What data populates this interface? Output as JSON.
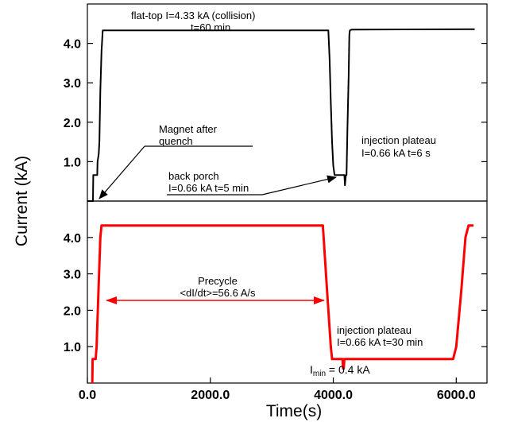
{
  "chart_data": [
    {
      "type": "line",
      "panel": "top",
      "xlim": [
        0,
        6500
      ],
      "ylim": [
        0,
        5.0
      ],
      "yticks": [
        "4.0",
        "3.0",
        "2.0",
        "1.0"
      ],
      "yticks_values": [
        4.0,
        3.0,
        2.0,
        1.0
      ],
      "series": [
        {
          "color": "#000000",
          "x": [
            0,
            90,
            95,
            100,
            160,
            165,
            185,
            195,
            210,
            230,
            250,
            270,
            3920,
            3940,
            3960,
            3980,
            4000,
            4020,
            4180,
            4190,
            4205,
            4215,
            4230,
            4250,
            4260,
            4270,
            4300,
            6300
          ],
          "y": [
            0,
            0,
            0.66,
            0.66,
            0.66,
            1.0,
            1.2,
            1.5,
            2.8,
            3.8,
            4.33,
            4.33,
            4.33,
            3.6,
            2.5,
            1.5,
            0.9,
            0.66,
            0.66,
            0.4,
            0.66,
            0.66,
            1.8,
            3.2,
            4.2,
            4.33,
            4.35,
            4.36
          ]
        }
      ],
      "annotations": {
        "flat_top_1": "flat-top I=4.33 kA (collision)",
        "flat_top_2": "t=60  min",
        "quench_1": "Magnet after",
        "quench_2": "quench",
        "porch_1": "back porch",
        "porch_2": "I=0.66 kA t=5 min",
        "plateau_1": "injection plateau",
        "plateau_2": "I=0.66 kA t=6 s"
      }
    },
    {
      "type": "line",
      "panel": "bottom",
      "xlim": [
        0,
        6500
      ],
      "ylim": [
        0,
        5.0
      ],
      "xticks": [
        "0.0",
        "2000.0",
        "4000.0",
        "6000.0"
      ],
      "xticks_values": [
        0,
        2000,
        4000,
        6000
      ],
      "yticks": [
        "4.0",
        "3.0",
        "2.0",
        "1.0"
      ],
      "yticks_values": [
        4.0,
        3.0,
        2.0,
        1.0
      ],
      "series": [
        {
          "color": "#ff0000",
          "x": [
            80,
            85,
            130,
            135,
            150,
            180,
            210,
            230,
            3830,
            3900,
            3960,
            3980,
            4020,
            4040,
            4150,
            4160,
            4170,
            4180,
            4200,
            5950,
            6000,
            6080,
            6150,
            6200,
            6280
          ],
          "y": [
            0.0,
            0.66,
            0.66,
            0.66,
            1.0,
            2.5,
            4.0,
            4.33,
            4.33,
            2.5,
            1.0,
            0.66,
            0.66,
            0.66,
            0.66,
            0.4,
            0.4,
            0.66,
            0.66,
            0.66,
            1.0,
            2.5,
            4.0,
            4.33,
            4.33
          ]
        }
      ],
      "annotations": {
        "precycle_1": "Precycle",
        "precycle_2": "<dI/dt>=56.6 A/s",
        "plateau_1": "injection plateau",
        "plateau_2": "I=0.66 kA t=30 min",
        "imin_label": "I",
        "imin_sub": "min",
        "imin_value": " = 0.4 kA"
      }
    }
  ],
  "xlabel": "Time(s)",
  "ylabel": "Current (kA)"
}
